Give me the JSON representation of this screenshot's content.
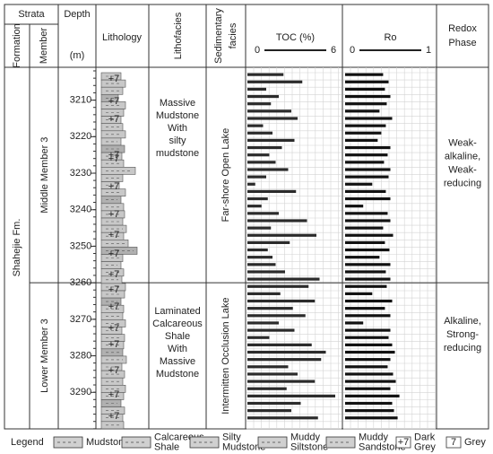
{
  "header": {
    "strata": "Strata",
    "formation": "Formation",
    "member": "Member",
    "depth": "Depth",
    "depth_unit": "(m)",
    "lithology": "Lithology",
    "lithofacies": "Lithofacies",
    "sedimentary_facies": [
      "Sedimentary",
      "facies"
    ],
    "redox": [
      "Redox",
      "Phase"
    ]
  },
  "formation": "Shahejie Fm.",
  "members": [
    "Middle  Member 3",
    "Lower Member 3"
  ],
  "lithofacies": [
    [
      "Massive",
      "Mudstone",
      "With",
      "silty",
      "mudstone"
    ],
    [
      "Laminated",
      "Calcareous",
      "Shale",
      "With",
      "Massive",
      "Mudstone"
    ]
  ],
  "sedimentary_facies": [
    "Far-shore Open Lake",
    "Intermitten Occlusion Lake"
  ],
  "redox": [
    [
      "Weak-",
      "alkaline,",
      "Weak-",
      "reducing"
    ],
    [
      "Alkaline,",
      "Strong-",
      "reducing"
    ]
  ],
  "depth_axis": {
    "ylim": [
      3201,
      3300
    ],
    "yticks": [
      3210,
      3220,
      3230,
      3240,
      3250,
      3260,
      3270,
      3280,
      3290
    ],
    "boundary": 3260
  },
  "dark_grey_symbol": "+7",
  "toc": {
    "label": "TOC (%)",
    "xlim": [
      0,
      6
    ],
    "xticks": [
      0,
      6
    ],
    "color": "#2b2b2b"
  },
  "ro": {
    "label": "Ro",
    "xlim": [
      0,
      1
    ],
    "xticks": [
      0,
      1
    ],
    "color": "#111111"
  },
  "depths": [
    3203,
    3205,
    3207,
    3209,
    3211,
    3213,
    3215,
    3217,
    3219,
    3221,
    3223,
    3225,
    3227,
    3229,
    3231,
    3233,
    3235,
    3237,
    3239,
    3241,
    3243,
    3245,
    3247,
    3249,
    3251,
    3253,
    3255,
    3257,
    3259,
    3261,
    3263,
    3265,
    3267,
    3269,
    3271,
    3273,
    3275,
    3277,
    3279,
    3281,
    3283,
    3285,
    3287,
    3289,
    3291,
    3293,
    3295,
    3297
  ],
  "toc_values": [
    2.3,
    3.5,
    1.2,
    2.0,
    1.5,
    2.8,
    3.2,
    1.0,
    1.6,
    3.0,
    2.2,
    1.4,
    1.8,
    2.6,
    1.2,
    0.5,
    3.1,
    1.3,
    0.9,
    2.0,
    3.8,
    1.5,
    4.4,
    2.7,
    1.3,
    1.6,
    1.8,
    2.4,
    4.6,
    3.9,
    2.1,
    4.3,
    2.9,
    3.7,
    2.0,
    3.0,
    1.4,
    4.1,
    5.0,
    4.7,
    2.6,
    3.2,
    4.3,
    2.5,
    5.6,
    3.4,
    2.8,
    4.5
  ],
  "ro_values": [
    0.42,
    0.48,
    0.44,
    0.5,
    0.46,
    0.38,
    0.52,
    0.45,
    0.4,
    0.36,
    0.5,
    0.47,
    0.43,
    0.5,
    0.48,
    0.3,
    0.45,
    0.5,
    0.2,
    0.47,
    0.5,
    0.42,
    0.53,
    0.44,
    0.49,
    0.38,
    0.5,
    0.45,
    0.5,
    0.46,
    0.3,
    0.52,
    0.44,
    0.5,
    0.2,
    0.5,
    0.48,
    0.52,
    0.55,
    0.5,
    0.47,
    0.53,
    0.56,
    0.5,
    0.6,
    0.52,
    0.54,
    0.58
  ],
  "legend": {
    "title": "Legend",
    "items": [
      [
        "Mudstone"
      ],
      [
        "Calcareous",
        "Shale"
      ],
      [
        "Silty",
        "Mudstone"
      ],
      [
        "Muddy",
        "Siltstone"
      ],
      [
        "Muddy",
        "Sandstone"
      ],
      [
        "Dark",
        "Grey"
      ],
      [
        "Grey"
      ]
    ],
    "grey_symbol": "7"
  }
}
